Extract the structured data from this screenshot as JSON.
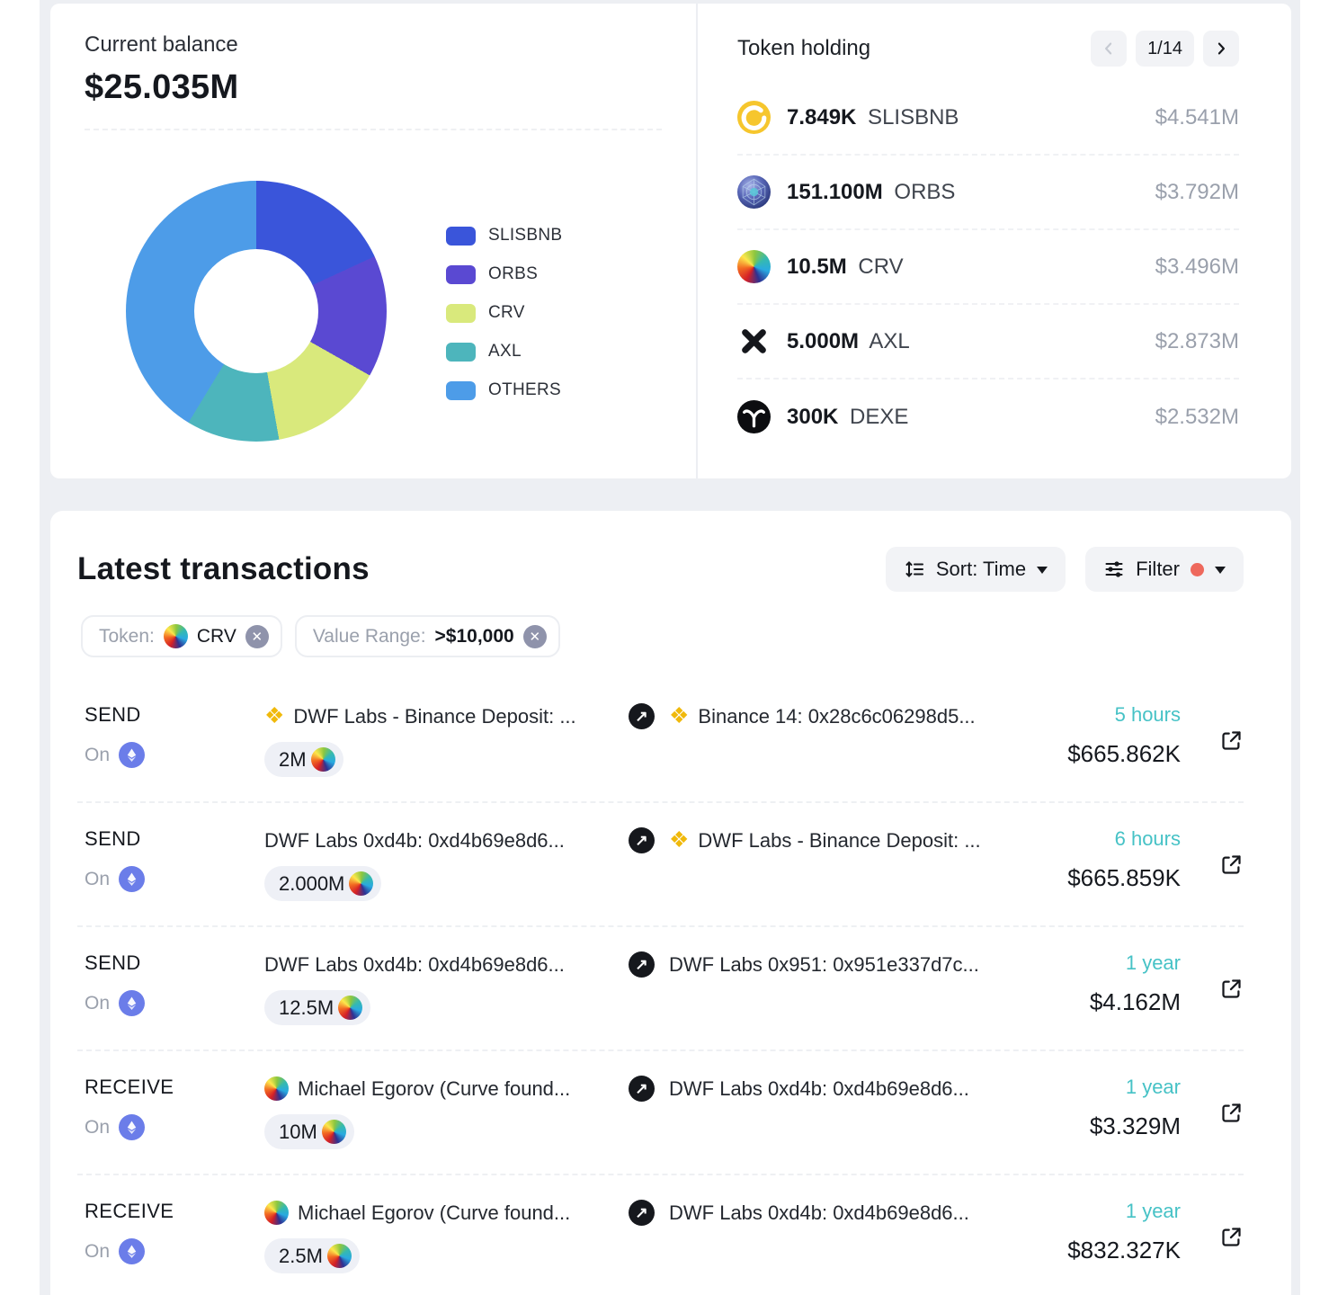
{
  "colors": {
    "page_background": "#edeff3",
    "card_background": "#ffffff",
    "time_accent": "#46c2c6",
    "filter_dot": "#ee685c",
    "binance_yellow": "#f0b90b",
    "ethereum_badge": "#6b7de9"
  },
  "balance_panel": {
    "label": "Current balance",
    "value": "$25.035M"
  },
  "chart_data": {
    "type": "pie",
    "donut": true,
    "title": "Current balance breakdown",
    "labels": [
      "SLISBNB",
      "ORBS",
      "CRV",
      "AXL",
      "OTHERS"
    ],
    "values_percent": [
      18.1,
      15.1,
      14.0,
      11.5,
      41.3
    ],
    "colors": [
      "#3a55da",
      "#5a49d2",
      "#d9e97c",
      "#4db5bc",
      "#4d9ce8"
    ],
    "legend_position": "right"
  },
  "token_holding": {
    "title": "Token holding",
    "pagination": {
      "current": "1/14"
    },
    "tokens": [
      {
        "amount": "7.849K",
        "symbol": "SLISBNB",
        "value": "$4.541M",
        "icon": "slisbnb"
      },
      {
        "amount": "151.100M",
        "symbol": "ORBS",
        "value": "$3.792M",
        "icon": "orbs"
      },
      {
        "amount": "10.5M",
        "symbol": "CRV",
        "value": "$3.496M",
        "icon": "crv"
      },
      {
        "amount": "5.000M",
        "symbol": "AXL",
        "value": "$2.873M",
        "icon": "axl"
      },
      {
        "amount": "300K",
        "symbol": "DEXE",
        "value": "$2.532M",
        "icon": "dexe"
      }
    ]
  },
  "transactions": {
    "title": "Latest transactions",
    "sort_label": "Sort: Time",
    "filter_label": "Filter",
    "on_label": "On",
    "filters": [
      {
        "label": "Token:",
        "value": "CRV",
        "token_icon": "crv"
      },
      {
        "label": "Value Range:",
        "value": ">$10,000"
      }
    ],
    "rows": [
      {
        "type": "SEND",
        "chain": "ethereum",
        "from": {
          "icon": "binance",
          "name": "DWF Labs - Binance Deposit: ..."
        },
        "to": {
          "icon": "binance",
          "name": "Binance 14: 0x28c6c06298d5..."
        },
        "amount": "2M",
        "amount_token": "crv",
        "time": "5 hours",
        "usd": "$665.862K"
      },
      {
        "type": "SEND",
        "chain": "ethereum",
        "from": {
          "icon": null,
          "name": "DWF Labs 0xd4b: 0xd4b69e8d6..."
        },
        "to": {
          "icon": "binance",
          "name": "DWF Labs - Binance Deposit: ..."
        },
        "amount": "2.000M",
        "amount_token": "crv",
        "time": "6 hours",
        "usd": "$665.859K"
      },
      {
        "type": "SEND",
        "chain": "ethereum",
        "from": {
          "icon": null,
          "name": "DWF Labs 0xd4b: 0xd4b69e8d6..."
        },
        "to": {
          "icon": null,
          "name": "DWF Labs 0x951: 0x951e337d7c..."
        },
        "amount": "12.5M",
        "amount_token": "crv",
        "time": "1 year",
        "usd": "$4.162M"
      },
      {
        "type": "RECEIVE",
        "chain": "ethereum",
        "from": {
          "icon": "crv",
          "name": "Michael Egorov (Curve found..."
        },
        "to": {
          "icon": null,
          "name": "DWF Labs 0xd4b: 0xd4b69e8d6..."
        },
        "amount": "10M",
        "amount_token": "crv",
        "time": "1 year",
        "usd": "$3.329M"
      },
      {
        "type": "RECEIVE",
        "chain": "ethereum",
        "from": {
          "icon": "crv",
          "name": "Michael Egorov (Curve found..."
        },
        "to": {
          "icon": null,
          "name": "DWF Labs 0xd4b: 0xd4b69e8d6..."
        },
        "amount": "2.5M",
        "amount_token": "crv",
        "time": "1 year",
        "usd": "$832.327K"
      }
    ]
  }
}
